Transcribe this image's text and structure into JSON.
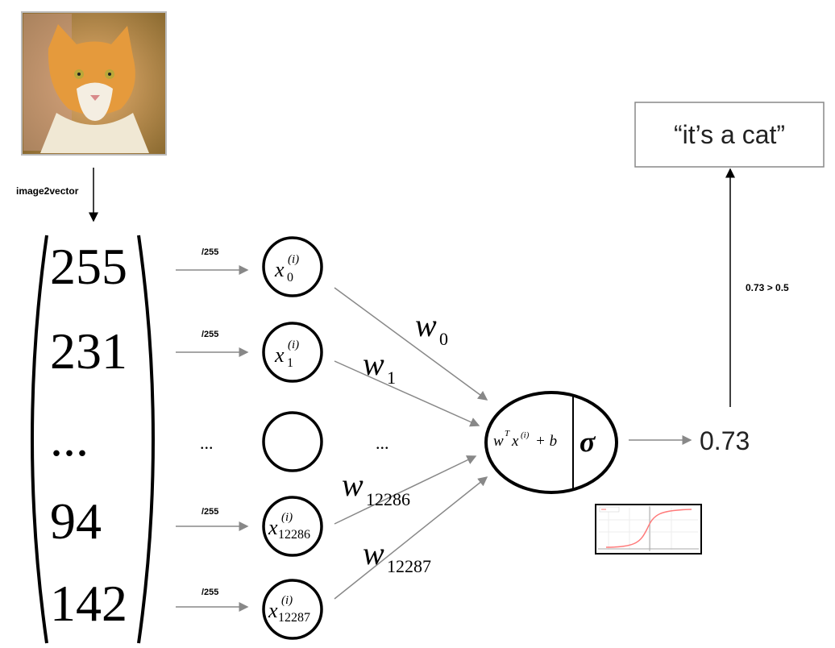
{
  "image_label": "image2vector",
  "vector_values": [
    "255",
    "231",
    "...",
    "94",
    "142"
  ],
  "normalize_label": "/255",
  "ellipsis": "...",
  "inputs": [
    {
      "base": "x",
      "sup": "(i)",
      "sub": "0"
    },
    {
      "base": "x",
      "sup": "(i)",
      "sub": "1"
    },
    {
      "base": "",
      "sup": "",
      "sub": ""
    },
    {
      "base": "x",
      "sup": "(i)",
      "sub": "12286"
    },
    {
      "base": "x",
      "sup": "(i)",
      "sub": "12287"
    }
  ],
  "weights": [
    {
      "base": "w",
      "sub": "0"
    },
    {
      "base": "w",
      "sub": "1"
    },
    {
      "base": "w",
      "sub": "12286"
    },
    {
      "base": "w",
      "sub": "12287"
    }
  ],
  "neuron": {
    "linear": {
      "w": "w",
      "T": "T",
      "x": "x",
      "i": "(i)",
      "plus_b": "+ b"
    },
    "activation": "σ"
  },
  "output_value": "0.73",
  "threshold_label": "0.73 > 0.5",
  "prediction": "“it’s a cat”",
  "colors": {
    "arrow": "#888888",
    "stroke": "#000000",
    "sigmoid_curve": "#ff7a7a"
  }
}
